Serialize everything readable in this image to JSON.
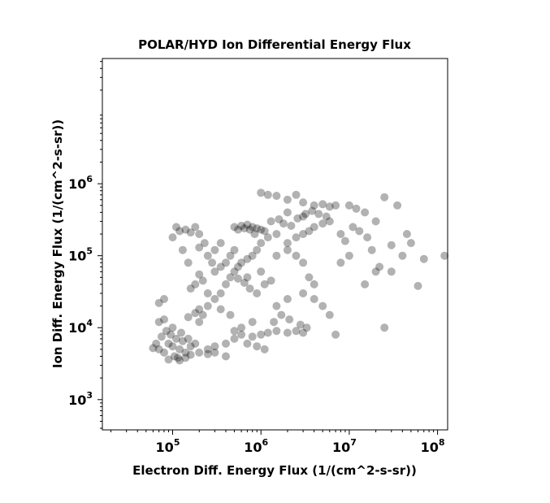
{
  "chart_data": {
    "type": "scatter",
    "title": "POLAR/HYD  Ion Differential Energy Flux",
    "xlabel": "Electron Diff. Energy Flux (1/(cm^2-s-sr))",
    "ylabel": "Ion Diff. Energy Flux (1/(cm^2-s-sr))",
    "x_scale": "log",
    "y_scale": "log",
    "xlim": [
      16000,
      130000000
    ],
    "ylim": [
      380,
      55000000
    ],
    "x_ticks": [
      {
        "value": 100000,
        "base": "10",
        "exp": "5"
      },
      {
        "value": 1000000,
        "base": "10",
        "exp": "6"
      },
      {
        "value": 10000000,
        "base": "10",
        "exp": "7"
      },
      {
        "value": 100000000,
        "base": "10",
        "exp": "8"
      }
    ],
    "y_ticks": [
      {
        "value": 1000,
        "base": "10",
        "exp": "3"
      },
      {
        "value": 10000,
        "base": "10",
        "exp": "4"
      },
      {
        "value": 100000,
        "base": "10",
        "exp": "5"
      },
      {
        "value": 1000000,
        "base": "10",
        "exp": "6"
      }
    ],
    "grid": false,
    "marker_color": "#000000",
    "marker_opacity": 0.3,
    "series": [
      {
        "points": [
          [
            70000,
            5000
          ],
          [
            80000,
            4500
          ],
          [
            90000,
            6000
          ],
          [
            100000,
            5500
          ],
          [
            110000,
            7000
          ],
          [
            120000,
            5000
          ],
          [
            130000,
            6500
          ],
          [
            95000,
            8000
          ],
          [
            85000,
            9000
          ],
          [
            105000,
            4000
          ],
          [
            75000,
            7500
          ],
          [
            65000,
            6000
          ],
          [
            140000,
            4500
          ],
          [
            115000,
            3800
          ],
          [
            90000,
            3600
          ],
          [
            125000,
            8500
          ],
          [
            60000,
            5200
          ],
          [
            100000,
            10000
          ],
          [
            70000,
            12000
          ],
          [
            80000,
            13000
          ],
          [
            150000,
            7000
          ],
          [
            160000,
            5500
          ],
          [
            180000,
            6000
          ],
          [
            200000,
            12000
          ],
          [
            220000,
            15000
          ],
          [
            250000,
            20000
          ],
          [
            300000,
            25000
          ],
          [
            350000,
            30000
          ],
          [
            400000,
            40000
          ],
          [
            450000,
            50000
          ],
          [
            500000,
            60000
          ],
          [
            550000,
            70000
          ],
          [
            600000,
            80000
          ],
          [
            700000,
            90000
          ],
          [
            300000,
            60000
          ],
          [
            350000,
            70000
          ],
          [
            400000,
            80000
          ],
          [
            450000,
            100000
          ],
          [
            500000,
            120000
          ],
          [
            300000,
            120000
          ],
          [
            350000,
            150000
          ],
          [
            250000,
            100000
          ],
          [
            280000,
            80000
          ],
          [
            800000,
            100000
          ],
          [
            900000,
            120000
          ],
          [
            1000000,
            150000
          ],
          [
            1200000,
            180000
          ],
          [
            1500000,
            200000
          ],
          [
            2000000,
            150000
          ],
          [
            2500000,
            180000
          ],
          [
            3000000,
            200000
          ],
          [
            3500000,
            220000
          ],
          [
            4000000,
            250000
          ],
          [
            5000000,
            280000
          ],
          [
            6000000,
            300000
          ],
          [
            1500000,
            100000
          ],
          [
            2000000,
            120000
          ],
          [
            2500000,
            100000
          ],
          [
            3000000,
            80000
          ],
          [
            1000000,
            60000
          ],
          [
            700000,
            50000
          ],
          [
            500000,
            250000
          ],
          [
            600000,
            260000
          ],
          [
            700000,
            270000
          ],
          [
            800000,
            250000
          ],
          [
            900000,
            240000
          ],
          [
            1000000,
            230000
          ],
          [
            1100000,
            220000
          ],
          [
            550000,
            230000
          ],
          [
            650000,
            240000
          ],
          [
            750000,
            230000
          ],
          [
            850000,
            200000
          ],
          [
            1000000,
            8000
          ],
          [
            1200000,
            8500
          ],
          [
            1500000,
            9000
          ],
          [
            800000,
            7500
          ],
          [
            600000,
            8000
          ],
          [
            500000,
            9000
          ],
          [
            2000000,
            8500
          ],
          [
            2500000,
            9000
          ],
          [
            3000000,
            8500
          ],
          [
            700000,
            6000
          ],
          [
            900000,
            5500
          ],
          [
            1100000,
            5000
          ],
          [
            1000000,
            750000
          ],
          [
            1200000,
            700000
          ],
          [
            1500000,
            680000
          ],
          [
            2000000,
            600000
          ],
          [
            2500000,
            700000
          ],
          [
            3000000,
            550000
          ],
          [
            4000000,
            500000
          ],
          [
            5000000,
            520000
          ],
          [
            2000000,
            400000
          ],
          [
            3000000,
            350000
          ],
          [
            6000000,
            480000
          ],
          [
            7000000,
            500000
          ],
          [
            100000,
            180000
          ],
          [
            120000,
            220000
          ],
          [
            140000,
            230000
          ],
          [
            200000,
            200000
          ],
          [
            180000,
            250000
          ],
          [
            160000,
            210000
          ],
          [
            110000,
            250000
          ],
          [
            10000000,
            500000
          ],
          [
            12000000,
            450000
          ],
          [
            15000000,
            400000
          ],
          [
            20000000,
            300000
          ],
          [
            25000000,
            650000
          ],
          [
            35000000,
            500000
          ],
          [
            30000000,
            140000
          ],
          [
            40000000,
            100000
          ],
          [
            45000000,
            200000
          ],
          [
            50000000,
            150000
          ],
          [
            60000000,
            38000
          ],
          [
            70000000,
            90000
          ],
          [
            120000000,
            100000
          ],
          [
            25000000,
            10000
          ],
          [
            30000000,
            60000
          ],
          [
            20000000,
            60000
          ],
          [
            15000000,
            40000
          ],
          [
            10000000,
            100000
          ],
          [
            8000000,
            80000
          ],
          [
            3000000,
            30000
          ],
          [
            4000000,
            25000
          ],
          [
            5000000,
            20000
          ],
          [
            6000000,
            15000
          ],
          [
            2000000,
            25000
          ],
          [
            1500000,
            20000
          ],
          [
            7000000,
            8000
          ],
          [
            3500000,
            50000
          ],
          [
            4000000,
            40000
          ],
          [
            120000,
            3500
          ],
          [
            140000,
            3800
          ],
          [
            160000,
            4200
          ],
          [
            200000,
            4500
          ],
          [
            250000,
            5000
          ],
          [
            300000,
            5500
          ],
          [
            400000,
            6000
          ],
          [
            500000,
            7000
          ],
          [
            150000,
            14000
          ],
          [
            180000,
            16000
          ],
          [
            200000,
            18000
          ],
          [
            70000,
            22000
          ],
          [
            80000,
            25000
          ],
          [
            300000,
            4500
          ],
          [
            400000,
            4000
          ],
          [
            250000,
            4300
          ],
          [
            600000,
            10000
          ],
          [
            800000,
            12000
          ],
          [
            450000,
            15000
          ],
          [
            350000,
            18000
          ],
          [
            250000,
            30000
          ],
          [
            220000,
            45000
          ],
          [
            200000,
            55000
          ],
          [
            180000,
            40000
          ],
          [
            160000,
            35000
          ],
          [
            150000,
            80000
          ],
          [
            130000,
            120000
          ],
          [
            200000,
            130000
          ],
          [
            230000,
            150000
          ],
          [
            1300000,
            300000
          ],
          [
            1600000,
            320000
          ],
          [
            1800000,
            280000
          ],
          [
            2200000,
            260000
          ],
          [
            2600000,
            330000
          ],
          [
            3200000,
            380000
          ],
          [
            3800000,
            420000
          ],
          [
            4500000,
            380000
          ],
          [
            5500000,
            350000
          ],
          [
            8000000,
            200000
          ],
          [
            9000000,
            160000
          ],
          [
            11000000,
            250000
          ],
          [
            13000000,
            220000
          ],
          [
            16000000,
            180000
          ],
          [
            18000000,
            120000
          ],
          [
            22000000,
            70000
          ],
          [
            1400000,
            12000
          ],
          [
            1700000,
            15000
          ],
          [
            2100000,
            13000
          ],
          [
            2800000,
            11000
          ],
          [
            3300000,
            10000
          ],
          [
            900000,
            30000
          ],
          [
            1100000,
            40000
          ],
          [
            1300000,
            45000
          ],
          [
            750000,
            35000
          ],
          [
            650000,
            42000
          ],
          [
            550000,
            48000
          ]
        ]
      }
    ]
  }
}
